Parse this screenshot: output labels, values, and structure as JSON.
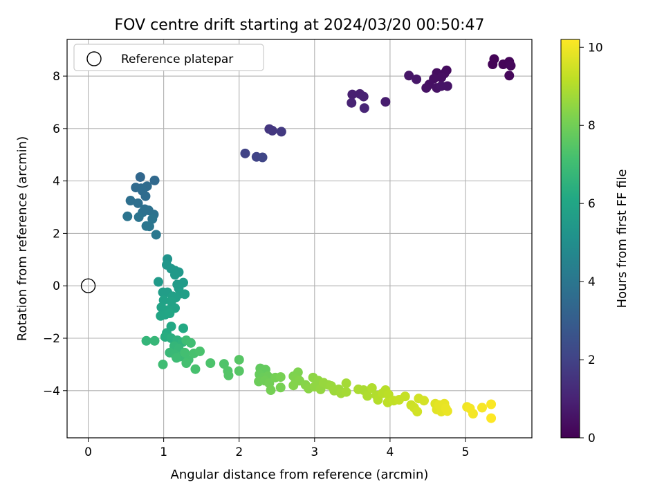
{
  "chart_data": {
    "type": "scatter",
    "title": "FOV centre drift starting at 2024/03/20 00:50:47",
    "xlabel": "Angular distance from reference (arcmin)",
    "ylabel": "Rotation from reference (arcmin)",
    "xlim": [
      -0.28,
      5.88
    ],
    "ylim": [
      -5.8,
      9.4
    ],
    "xticks": [
      0,
      1,
      2,
      3,
      4,
      5
    ],
    "yticks": [
      -4,
      -2,
      0,
      2,
      4,
      6,
      8
    ],
    "xtick_labels": [
      "0",
      "1",
      "2",
      "3",
      "4",
      "5"
    ],
    "ytick_labels": [
      "−4",
      "−2",
      "0",
      "2",
      "4",
      "6",
      "8"
    ],
    "grid": true,
    "legend": {
      "placement": "top-left",
      "entries": [
        "Reference platepar"
      ]
    },
    "reference_point": {
      "x": 0,
      "y": 0
    },
    "colorbar": {
      "label": "Hours from first FF file",
      "range": [
        0,
        10.2
      ],
      "ticks": [
        0,
        2,
        4,
        6,
        8,
        10
      ],
      "tick_labels": [
        "0",
        "2",
        "4",
        "6",
        "8",
        "10"
      ],
      "colormap": "viridis"
    },
    "series": [
      {
        "values": [
          {
            "x": 5.38,
            "y": 8.65,
            "c": 0.1
          },
          {
            "x": 5.36,
            "y": 8.45,
            "c": 0.1
          },
          {
            "x": 5.5,
            "y": 8.45,
            "c": 0.15
          },
          {
            "x": 5.58,
            "y": 8.55,
            "c": 0.15
          },
          {
            "x": 5.6,
            "y": 8.4,
            "c": 0.2
          },
          {
            "x": 5.58,
            "y": 8.02,
            "c": 0.2
          },
          {
            "x": 4.75,
            "y": 8.22,
            "c": 0.3
          },
          {
            "x": 4.72,
            "y": 8.1,
            "c": 0.35
          },
          {
            "x": 4.62,
            "y": 8.12,
            "c": 0.35
          },
          {
            "x": 4.68,
            "y": 7.95,
            "c": 0.4
          },
          {
            "x": 4.58,
            "y": 7.9,
            "c": 0.4
          },
          {
            "x": 4.52,
            "y": 7.68,
            "c": 0.45
          },
          {
            "x": 4.48,
            "y": 7.55,
            "c": 0.5
          },
          {
            "x": 4.62,
            "y": 7.55,
            "c": 0.5
          },
          {
            "x": 4.68,
            "y": 7.62,
            "c": 0.55
          },
          {
            "x": 4.76,
            "y": 7.62,
            "c": 0.55
          },
          {
            "x": 4.25,
            "y": 8.02,
            "c": 0.6
          },
          {
            "x": 4.35,
            "y": 7.88,
            "c": 0.65
          },
          {
            "x": 3.94,
            "y": 7.02,
            "c": 0.8
          },
          {
            "x": 3.5,
            "y": 7.3,
            "c": 0.9
          },
          {
            "x": 3.6,
            "y": 7.32,
            "c": 0.9
          },
          {
            "x": 3.65,
            "y": 7.22,
            "c": 0.95
          },
          {
            "x": 3.49,
            "y": 6.98,
            "c": 1.0
          },
          {
            "x": 3.66,
            "y": 6.78,
            "c": 1.05
          },
          {
            "x": 2.4,
            "y": 5.98,
            "c": 1.6
          },
          {
            "x": 2.44,
            "y": 5.92,
            "c": 1.65
          },
          {
            "x": 2.56,
            "y": 5.88,
            "c": 1.7
          },
          {
            "x": 2.08,
            "y": 5.05,
            "c": 2.0
          },
          {
            "x": 2.23,
            "y": 4.92,
            "c": 2.05
          },
          {
            "x": 2.31,
            "y": 4.9,
            "c": 2.1
          },
          {
            "x": 0.69,
            "y": 4.15,
            "c": 3.4
          },
          {
            "x": 0.88,
            "y": 4.02,
            "c": 3.45
          },
          {
            "x": 0.63,
            "y": 3.75,
            "c": 3.5
          },
          {
            "x": 0.7,
            "y": 3.72,
            "c": 3.5
          },
          {
            "x": 0.78,
            "y": 3.8,
            "c": 3.55
          },
          {
            "x": 0.72,
            "y": 3.62,
            "c": 3.6
          },
          {
            "x": 0.76,
            "y": 3.42,
            "c": 3.6
          },
          {
            "x": 0.56,
            "y": 3.25,
            "c": 3.7
          },
          {
            "x": 0.66,
            "y": 3.15,
            "c": 3.7
          },
          {
            "x": 0.75,
            "y": 2.92,
            "c": 3.75
          },
          {
            "x": 0.8,
            "y": 2.88,
            "c": 3.8
          },
          {
            "x": 0.72,
            "y": 2.8,
            "c": 3.8
          },
          {
            "x": 0.87,
            "y": 2.72,
            "c": 3.85
          },
          {
            "x": 0.52,
            "y": 2.65,
            "c": 3.9
          },
          {
            "x": 0.67,
            "y": 2.62,
            "c": 3.9
          },
          {
            "x": 0.85,
            "y": 2.55,
            "c": 3.95
          },
          {
            "x": 0.77,
            "y": 2.28,
            "c": 4.0
          },
          {
            "x": 0.81,
            "y": 2.27,
            "c": 4.0
          },
          {
            "x": 0.9,
            "y": 1.95,
            "c": 4.1
          },
          {
            "x": 1.05,
            "y": 1.02,
            "c": 5.2
          },
          {
            "x": 1.04,
            "y": 0.8,
            "c": 5.3
          },
          {
            "x": 1.1,
            "y": 0.65,
            "c": 5.35
          },
          {
            "x": 1.15,
            "y": 0.58,
            "c": 5.4
          },
          {
            "x": 1.2,
            "y": 0.52,
            "c": 5.4
          },
          {
            "x": 1.15,
            "y": 0.42,
            "c": 5.45
          },
          {
            "x": 0.93,
            "y": 0.15,
            "c": 5.5
          },
          {
            "x": 1.18,
            "y": 0.05,
            "c": 5.55
          },
          {
            "x": 1.26,
            "y": 0.12,
            "c": 5.55
          },
          {
            "x": 1.2,
            "y": -0.1,
            "c": 5.6
          },
          {
            "x": 0.99,
            "y": -0.25,
            "c": 5.65
          },
          {
            "x": 1.05,
            "y": -0.25,
            "c": 5.65
          },
          {
            "x": 1.22,
            "y": -0.3,
            "c": 5.7
          },
          {
            "x": 1.28,
            "y": -0.32,
            "c": 5.7
          },
          {
            "x": 1.12,
            "y": -0.4,
            "c": 5.75
          },
          {
            "x": 1.16,
            "y": -0.45,
            "c": 5.75
          },
          {
            "x": 1.0,
            "y": -0.55,
            "c": 5.8
          },
          {
            "x": 1.1,
            "y": -0.6,
            "c": 5.85
          },
          {
            "x": 0.97,
            "y": -0.82,
            "c": 5.9
          },
          {
            "x": 1.15,
            "y": -0.85,
            "c": 5.9
          },
          {
            "x": 1.06,
            "y": -0.92,
            "c": 5.95
          },
          {
            "x": 0.96,
            "y": -1.15,
            "c": 6.0
          },
          {
            "x": 1.02,
            "y": -1.1,
            "c": 6.0
          },
          {
            "x": 1.08,
            "y": -1.05,
            "c": 6.05
          },
          {
            "x": 1.1,
            "y": -1.55,
            "c": 6.1
          },
          {
            "x": 1.26,
            "y": -1.62,
            "c": 6.15
          },
          {
            "x": 1.04,
            "y": -1.8,
            "c": 6.2
          },
          {
            "x": 1.02,
            "y": -1.95,
            "c": 6.3
          },
          {
            "x": 1.1,
            "y": -2.0,
            "c": 6.4
          },
          {
            "x": 1.18,
            "y": -2.08,
            "c": 6.5
          },
          {
            "x": 1.25,
            "y": -2.15,
            "c": 6.6
          },
          {
            "x": 1.14,
            "y": -2.3,
            "c": 6.7
          },
          {
            "x": 1.2,
            "y": -2.4,
            "c": 6.75
          },
          {
            "x": 1.08,
            "y": -2.55,
            "c": 6.8
          },
          {
            "x": 1.15,
            "y": -2.62,
            "c": 6.85
          },
          {
            "x": 1.22,
            "y": -2.7,
            "c": 6.9
          },
          {
            "x": 1.17,
            "y": -2.75,
            "c": 6.95
          },
          {
            "x": 0.77,
            "y": -2.1,
            "c": 6.7
          },
          {
            "x": 0.88,
            "y": -2.1,
            "c": 6.75
          },
          {
            "x": 0.99,
            "y": -3.0,
            "c": 7.0
          },
          {
            "x": 1.3,
            "y": -2.08,
            "c": 7.0
          },
          {
            "x": 1.36,
            "y": -2.18,
            "c": 7.05
          },
          {
            "x": 1.28,
            "y": -2.55,
            "c": 7.1
          },
          {
            "x": 1.33,
            "y": -2.82,
            "c": 7.1
          },
          {
            "x": 1.3,
            "y": -2.95,
            "c": 7.15
          },
          {
            "x": 1.42,
            "y": -3.18,
            "c": 7.2
          },
          {
            "x": 1.4,
            "y": -2.58,
            "c": 7.2
          },
          {
            "x": 1.48,
            "y": -2.5,
            "c": 7.25
          },
          {
            "x": 1.62,
            "y": -2.95,
            "c": 7.3
          },
          {
            "x": 1.8,
            "y": -2.98,
            "c": 7.35
          },
          {
            "x": 1.85,
            "y": -3.25,
            "c": 7.4
          },
          {
            "x": 1.86,
            "y": -3.42,
            "c": 7.45
          },
          {
            "x": 2.0,
            "y": -3.25,
            "c": 7.5
          },
          {
            "x": 2.0,
            "y": -2.82,
            "c": 7.5
          },
          {
            "x": 2.28,
            "y": -3.15,
            "c": 7.7
          },
          {
            "x": 2.35,
            "y": -3.2,
            "c": 7.75
          },
          {
            "x": 2.27,
            "y": -3.38,
            "c": 7.8
          },
          {
            "x": 2.32,
            "y": -3.5,
            "c": 7.85
          },
          {
            "x": 2.38,
            "y": -3.45,
            "c": 7.9
          },
          {
            "x": 2.26,
            "y": -3.65,
            "c": 7.9
          },
          {
            "x": 2.34,
            "y": -3.62,
            "c": 7.95
          },
          {
            "x": 2.4,
            "y": -3.72,
            "c": 8.0
          },
          {
            "x": 2.42,
            "y": -3.98,
            "c": 8.05
          },
          {
            "x": 2.48,
            "y": -3.5,
            "c": 8.05
          },
          {
            "x": 2.55,
            "y": -3.48,
            "c": 8.1
          },
          {
            "x": 2.55,
            "y": -3.88,
            "c": 8.1
          },
          {
            "x": 2.72,
            "y": -3.45,
            "c": 8.2
          },
          {
            "x": 2.78,
            "y": -3.3,
            "c": 8.2
          },
          {
            "x": 2.75,
            "y": -3.55,
            "c": 8.25
          },
          {
            "x": 2.8,
            "y": -3.62,
            "c": 8.3
          },
          {
            "x": 2.72,
            "y": -3.8,
            "c": 8.3
          },
          {
            "x": 2.88,
            "y": -3.78,
            "c": 8.35
          },
          {
            "x": 2.92,
            "y": -3.92,
            "c": 8.4
          },
          {
            "x": 2.98,
            "y": -3.5,
            "c": 8.45
          },
          {
            "x": 3.05,
            "y": -3.62,
            "c": 8.5
          },
          {
            "x": 3.0,
            "y": -3.85,
            "c": 8.5
          },
          {
            "x": 3.08,
            "y": -3.95,
            "c": 8.55
          },
          {
            "x": 3.12,
            "y": -3.7,
            "c": 8.6
          },
          {
            "x": 3.18,
            "y": -3.78,
            "c": 8.6
          },
          {
            "x": 3.22,
            "y": -3.82,
            "c": 8.65
          },
          {
            "x": 3.26,
            "y": -4.0,
            "c": 8.7
          },
          {
            "x": 3.32,
            "y": -3.95,
            "c": 8.7
          },
          {
            "x": 3.35,
            "y": -4.1,
            "c": 8.75
          },
          {
            "x": 3.42,
            "y": -4.05,
            "c": 8.8
          },
          {
            "x": 3.42,
            "y": -3.72,
            "c": 8.8
          },
          {
            "x": 3.58,
            "y": -3.95,
            "c": 8.9
          },
          {
            "x": 3.65,
            "y": -3.98,
            "c": 8.9
          },
          {
            "x": 3.7,
            "y": -4.2,
            "c": 8.95
          },
          {
            "x": 3.76,
            "y": -3.9,
            "c": 9.0
          },
          {
            "x": 3.82,
            "y": -4.18,
            "c": 9.0
          },
          {
            "x": 3.84,
            "y": -4.35,
            "c": 9.05
          },
          {
            "x": 3.9,
            "y": -4.1,
            "c": 9.1
          },
          {
            "x": 3.94,
            "y": -3.98,
            "c": 9.1
          },
          {
            "x": 3.98,
            "y": -4.15,
            "c": 9.15
          },
          {
            "x": 3.97,
            "y": -4.45,
            "c": 9.2
          },
          {
            "x": 4.05,
            "y": -4.38,
            "c": 9.25
          },
          {
            "x": 4.12,
            "y": -4.35,
            "c": 9.3
          },
          {
            "x": 4.2,
            "y": -4.22,
            "c": 9.3
          },
          {
            "x": 4.28,
            "y": -4.55,
            "c": 9.4
          },
          {
            "x": 4.32,
            "y": -4.65,
            "c": 9.45
          },
          {
            "x": 4.36,
            "y": -4.8,
            "c": 9.5
          },
          {
            "x": 4.38,
            "y": -4.3,
            "c": 9.5
          },
          {
            "x": 4.45,
            "y": -4.38,
            "c": 9.55
          },
          {
            "x": 4.6,
            "y": -4.5,
            "c": 9.7
          },
          {
            "x": 4.62,
            "y": -4.72,
            "c": 9.75
          },
          {
            "x": 4.65,
            "y": -4.55,
            "c": 9.8
          },
          {
            "x": 4.68,
            "y": -4.8,
            "c": 9.8
          },
          {
            "x": 4.72,
            "y": -4.5,
            "c": 9.85
          },
          {
            "x": 4.74,
            "y": -4.68,
            "c": 9.9
          },
          {
            "x": 4.76,
            "y": -4.78,
            "c": 9.9
          },
          {
            "x": 5.02,
            "y": -4.62,
            "c": 10.0
          },
          {
            "x": 5.06,
            "y": -4.68,
            "c": 10.05
          },
          {
            "x": 5.1,
            "y": -4.88,
            "c": 10.05
          },
          {
            "x": 5.22,
            "y": -4.65,
            "c": 10.1
          },
          {
            "x": 5.34,
            "y": -4.52,
            "c": 10.15
          },
          {
            "x": 5.34,
            "y": -5.05,
            "c": 10.2
          }
        ]
      }
    ]
  }
}
